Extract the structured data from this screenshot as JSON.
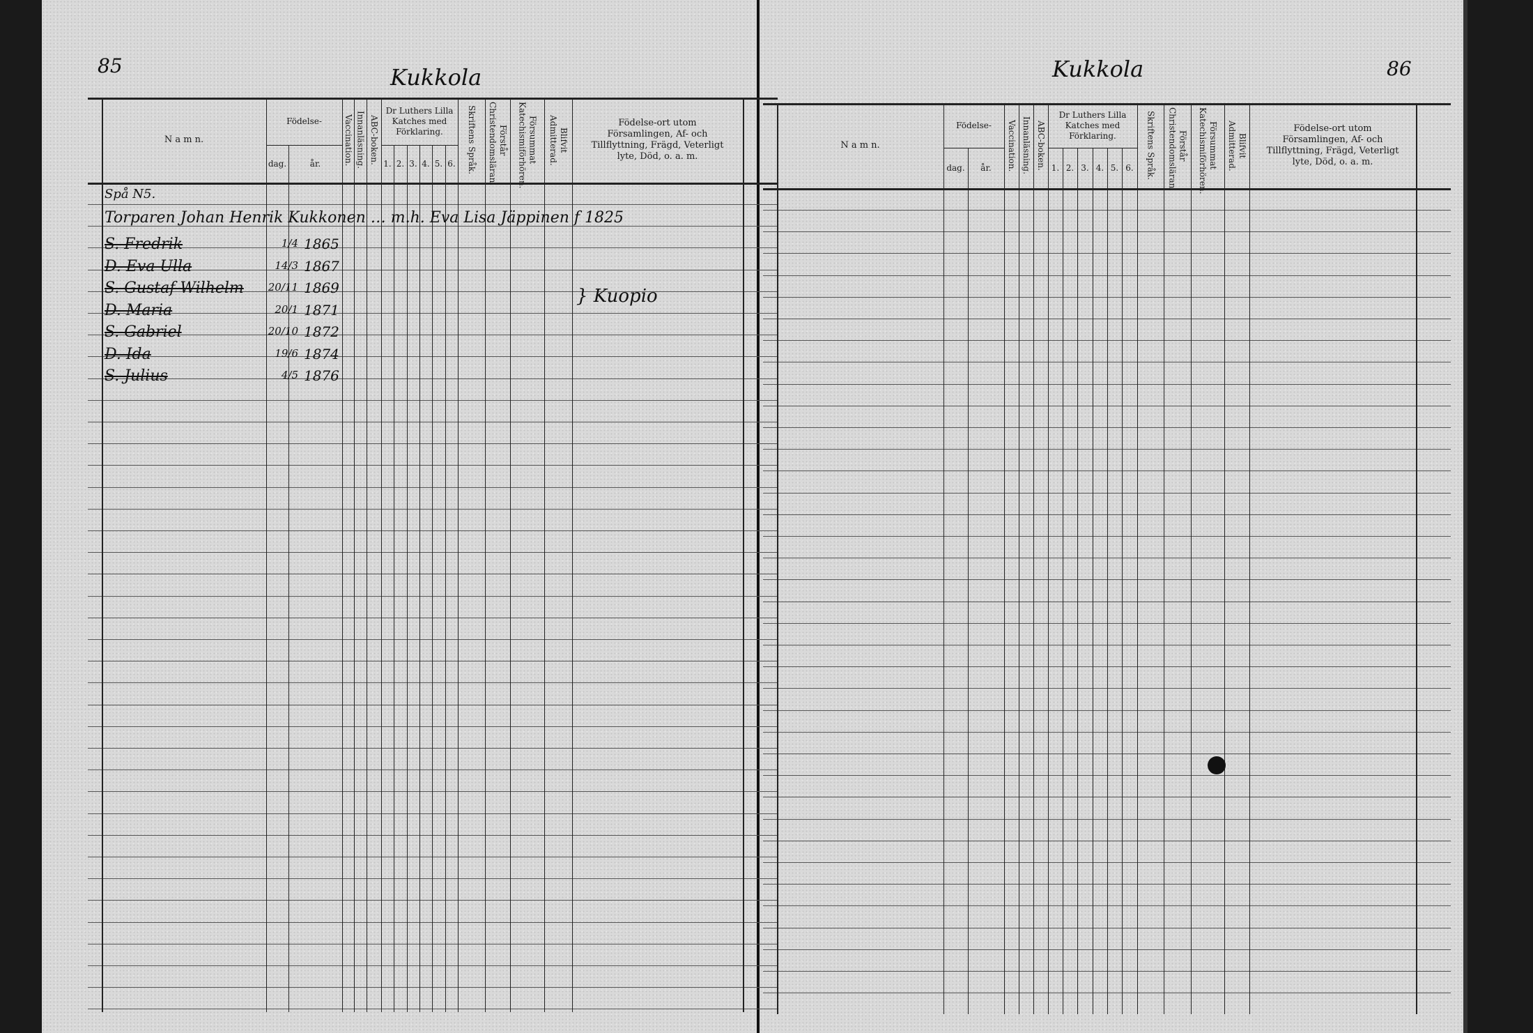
{
  "left_page": {
    "page_number": "85",
    "village": "Kukkola",
    "header": {
      "name": "N a m n.",
      "birth": "Födelse-",
      "day": "dag.",
      "year": "år.",
      "vaccination": "Vaccination.",
      "reading": "Innanläsning.",
      "abc": "ABC-boken.",
      "catechism": "Dr Luthers Lilla Katches med Förklaring.",
      "catechism_cols": [
        "1.",
        "2.",
        "3.",
        "4.",
        "5.",
        "6."
      ],
      "scripture": "Skriftens Språk.",
      "christian": "Förstår Christendomsläran.",
      "missed": "Försummat Katechismiförhören.",
      "admitted": "Blifvit Admitterad.",
      "notes": "Födelse-ort utom Församlingen, Af- och Tillflyttning, Frägd, Veterligt lyte, Död, o. a. m."
    },
    "entries": [
      {
        "name": "Spå N5.",
        "day": "",
        "year": "",
        "struck": false
      },
      {
        "name": "Torparen Johan Henrik Kukkonen … m.h. Eva Lisa Jäppinen f 1825",
        "day": "",
        "year": "",
        "struck": false
      },
      {
        "name": "S. Fredrik",
        "day": "1/4",
        "year": "1865",
        "struck": true
      },
      {
        "name": "D. Eva Ulla",
        "day": "14/3",
        "year": "1867",
        "struck": true
      },
      {
        "name": "S. Gustaf Wilhelm",
        "day": "20/11",
        "year": "1869",
        "struck": true
      },
      {
        "name": "D. Maria",
        "day": "20/1",
        "year": "1871",
        "struck": true
      },
      {
        "name": "S. Gabriel",
        "day": "20/10",
        "year": "1872",
        "struck": true
      },
      {
        "name": "D. Ida",
        "day": "19/6",
        "year": "1874",
        "struck": true
      },
      {
        "name": "S. Julius",
        "day": "4/5",
        "year": "1876",
        "struck": true
      }
    ],
    "margin_note": "} Kuopio"
  },
  "right_page": {
    "page_number": "86",
    "village": "Kukkola",
    "header": {
      "name": "N a m n.",
      "birth": "Födelse-",
      "day": "dag.",
      "year": "år.",
      "vaccination": "Vaccination.",
      "reading": "Innanläsning.",
      "abc": "ABC-boken.",
      "catechism": "Dr Luthers Lilla Katches med Förklaring.",
      "catechism_cols": [
        "1.",
        "2.",
        "3.",
        "4.",
        "5.",
        "6."
      ],
      "scripture": "Skriftens Språk.",
      "christian": "Förstår Christendomsläran.",
      "missed": "Försummat Katechismiförhören.",
      "admitted": "Blifvit Admitterad.",
      "notes": "Födelse-ort utom Församlingen, Af- och Tillflyttning, Frägd, Veterligt lyte, Död, o. a. m."
    }
  }
}
